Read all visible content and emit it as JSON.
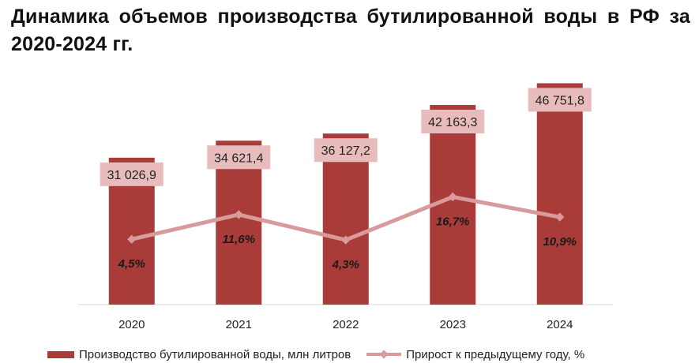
{
  "title": "Динамика объемов производства бутилированной воды в РФ за 2020-2024 гг.",
  "chart_data": {
    "type": "bar",
    "title": "Динамика объемов производства бутилированной воды в РФ за 2020-2024 гг.",
    "categories": [
      "2020",
      "2021",
      "2022",
      "2023",
      "2024"
    ],
    "series": [
      {
        "name": "Производство бутилированной воды, млн литров",
        "type": "bar",
        "values": [
          31026.9,
          34621.4,
          36127.2,
          42163.3,
          46751.8
        ],
        "labels": [
          "31 026,9",
          "34 621,4",
          "36 127,2",
          "42 163,3",
          "46 751,8"
        ],
        "color": "#a93b38"
      },
      {
        "name": "Прирост к предыдущему году, %",
        "type": "line",
        "values": [
          4.5,
          11.6,
          4.3,
          16.7,
          10.9
        ],
        "labels": [
          "4,5%",
          "11,6%",
          "4,3%",
          "16,7%",
          "10,9%"
        ],
        "color": "#d89a9a"
      }
    ],
    "bar_label_bg": "#e8bcbc",
    "xlabel": "",
    "ylabel": "",
    "grid": false,
    "legend_position": "bottom"
  }
}
